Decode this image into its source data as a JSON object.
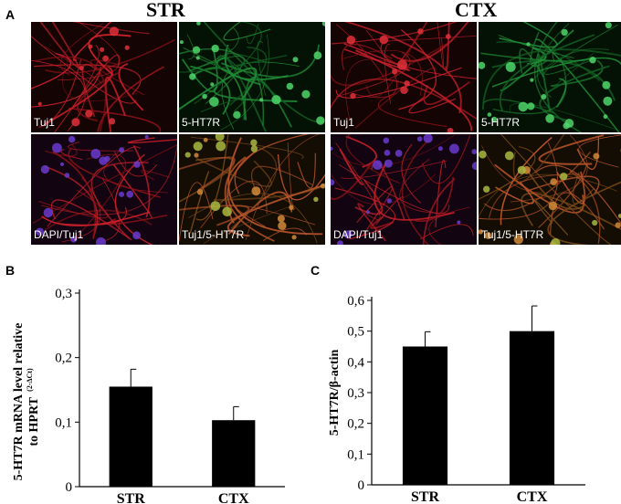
{
  "panel_a": {
    "letter": "A",
    "groups": [
      {
        "title": "STR",
        "images": [
          {
            "label": "Tuj1",
            "channel": "red"
          },
          {
            "label": "5-HT7R",
            "channel": "green"
          },
          {
            "label": "DAPI/Tuj1",
            "channel": "red-blue"
          },
          {
            "label": "Tuj1/5-HT7R",
            "channel": "merge"
          }
        ]
      },
      {
        "title": "CTX",
        "images": [
          {
            "label": "Tuj1",
            "channel": "red"
          },
          {
            "label": "5-HT7R",
            "channel": "green"
          },
          {
            "label": "DAPI/Tuj1",
            "channel": "red-blue"
          },
          {
            "label": "Tuj1/5-HT7R",
            "channel": "merge"
          }
        ]
      }
    ]
  },
  "panel_b": {
    "letter": "B",
    "ylabel_line1": "5-HT7R mRNA level relative",
    "ylabel_line2": "to HPRT",
    "ylabel_sup": "(2-ΔCt)"
  },
  "panel_c": {
    "letter": "C",
    "ylabel": "5-HT7R/β-actin"
  },
  "chart_data": [
    {
      "type": "bar",
      "categories": [
        "STR",
        "CTX"
      ],
      "values": [
        0.155,
        0.103
      ],
      "errors": [
        0.027,
        0.021
      ],
      "ylim": [
        0,
        0.3
      ],
      "yticks": [
        0,
        0.1,
        0.2,
        0.3
      ],
      "ytick_labels": [
        "0",
        "0,1",
        "0,2",
        "0,3"
      ],
      "bar_color": "#000000"
    },
    {
      "type": "bar",
      "categories": [
        "STR",
        "CTX"
      ],
      "values": [
        0.45,
        0.5
      ],
      "errors": [
        0.048,
        0.082
      ],
      "ylim": [
        0,
        0.6
      ],
      "yticks": [
        0,
        0.1,
        0.2,
        0.3,
        0.4,
        0.5,
        0.6
      ],
      "ytick_labels": [
        "0",
        "0,1",
        "0,2",
        "0,3",
        "0,4",
        "0,5",
        "0,6"
      ],
      "bar_color": "#000000"
    }
  ]
}
